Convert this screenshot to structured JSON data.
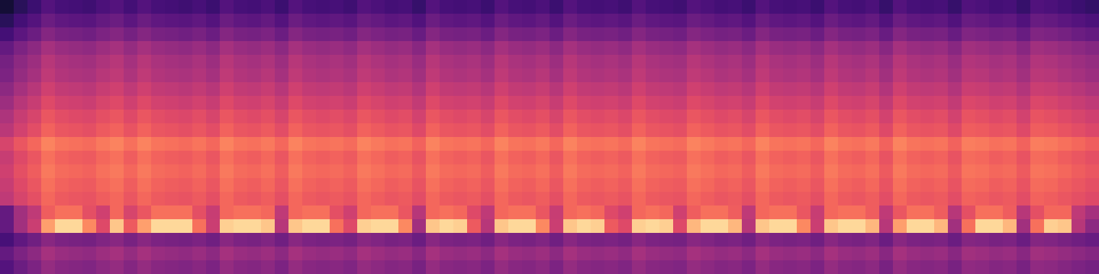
{
  "chart_data": {
    "type": "heatmap",
    "color": "magma",
    "tick_labels": false,
    "zlim": [
      0,
      100
    ],
    "cells": [
      [
        10,
        16,
        20,
        26,
        23,
        22,
        21,
        24,
        26,
        22,
        26,
        23,
        22,
        21,
        23,
        20,
        26,
        23,
        22,
        24,
        20,
        26,
        23,
        22,
        23,
        21,
        26,
        24,
        22,
        23,
        19,
        26,
        23,
        22,
        23,
        20,
        26,
        23,
        22,
        24,
        20,
        26,
        23,
        22,
        23,
        21,
        26,
        23,
        22,
        21,
        26,
        24,
        22,
        23,
        20,
        26,
        23,
        22,
        23,
        20,
        26,
        23,
        22,
        24,
        19,
        26,
        23,
        22,
        23,
        19,
        25,
        24,
        22,
        23,
        19,
        25,
        24,
        22,
        20,
        18
      ],
      [
        16,
        22,
        26,
        32,
        29,
        28,
        27,
        30,
        32,
        28,
        32,
        29,
        28,
        27,
        29,
        26,
        32,
        29,
        28,
        30,
        26,
        32,
        29,
        28,
        29,
        27,
        32,
        30,
        28,
        29,
        25,
        32,
        29,
        28,
        29,
        26,
        32,
        29,
        28,
        30,
        26,
        32,
        29,
        28,
        29,
        27,
        32,
        29,
        28,
        27,
        32,
        30,
        28,
        29,
        26,
        32,
        29,
        28,
        29,
        26,
        32,
        29,
        28,
        30,
        25,
        32,
        29,
        28,
        29,
        25,
        31,
        30,
        28,
        29,
        25,
        31,
        30,
        28,
        26,
        24
      ],
      [
        22,
        28,
        32,
        38,
        35,
        34,
        33,
        36,
        38,
        34,
        38,
        35,
        34,
        33,
        35,
        32,
        38,
        35,
        34,
        36,
        32,
        38,
        35,
        34,
        35,
        33,
        38,
        36,
        34,
        35,
        31,
        38,
        35,
        34,
        35,
        32,
        38,
        35,
        34,
        36,
        32,
        38,
        35,
        34,
        35,
        33,
        38,
        35,
        34,
        33,
        38,
        36,
        34,
        35,
        32,
        38,
        35,
        34,
        35,
        32,
        38,
        35,
        34,
        36,
        31,
        38,
        35,
        34,
        35,
        31,
        37,
        36,
        34,
        35,
        31,
        37,
        36,
        34,
        32,
        30
      ],
      [
        30,
        36,
        40,
        46,
        43,
        42,
        41,
        44,
        46,
        42,
        46,
        43,
        42,
        41,
        43,
        40,
        46,
        43,
        42,
        44,
        40,
        46,
        43,
        42,
        43,
        41,
        46,
        44,
        42,
        43,
        39,
        46,
        43,
        42,
        43,
        40,
        46,
        43,
        42,
        44,
        40,
        46,
        43,
        42,
        43,
        41,
        46,
        43,
        42,
        41,
        46,
        44,
        42,
        43,
        40,
        46,
        43,
        42,
        43,
        40,
        46,
        43,
        42,
        44,
        39,
        46,
        43,
        42,
        43,
        39,
        45,
        44,
        42,
        43,
        39,
        45,
        44,
        42,
        40,
        38
      ],
      [
        34,
        40,
        44,
        50,
        47,
        46,
        45,
        48,
        50,
        46,
        50,
        47,
        46,
        45,
        47,
        44,
        50,
        47,
        46,
        48,
        44,
        50,
        47,
        46,
        47,
        45,
        50,
        48,
        46,
        47,
        43,
        50,
        47,
        46,
        47,
        44,
        50,
        47,
        46,
        48,
        44,
        50,
        47,
        46,
        47,
        45,
        50,
        47,
        46,
        45,
        50,
        48,
        46,
        47,
        44,
        50,
        47,
        46,
        47,
        44,
        50,
        47,
        46,
        48,
        43,
        50,
        47,
        46,
        47,
        43,
        49,
        48,
        46,
        47,
        43,
        49,
        48,
        46,
        44,
        42
      ],
      [
        36,
        42,
        46,
        52,
        49,
        48,
        47,
        50,
        52,
        48,
        52,
        49,
        48,
        47,
        49,
        46,
        52,
        49,
        48,
        50,
        46,
        52,
        49,
        48,
        49,
        47,
        52,
        50,
        48,
        49,
        45,
        52,
        49,
        48,
        49,
        46,
        52,
        49,
        48,
        50,
        46,
        52,
        49,
        48,
        49,
        47,
        52,
        49,
        48,
        47,
        52,
        50,
        48,
        49,
        46,
        52,
        49,
        48,
        49,
        46,
        52,
        49,
        48,
        50,
        45,
        52,
        49,
        48,
        49,
        45,
        51,
        50,
        48,
        49,
        45,
        51,
        50,
        48,
        46,
        44
      ],
      [
        40,
        46,
        50,
        56,
        53,
        52,
        51,
        54,
        56,
        52,
        56,
        53,
        52,
        51,
        53,
        50,
        56,
        53,
        52,
        54,
        50,
        56,
        53,
        52,
        53,
        51,
        56,
        54,
        52,
        53,
        49,
        56,
        53,
        52,
        53,
        50,
        56,
        53,
        52,
        54,
        50,
        56,
        53,
        52,
        53,
        51,
        56,
        53,
        52,
        51,
        56,
        54,
        52,
        53,
        50,
        56,
        53,
        52,
        53,
        50,
        56,
        53,
        52,
        54,
        49,
        56,
        53,
        52,
        53,
        49,
        55,
        54,
        52,
        53,
        49,
        55,
        54,
        52,
        50,
        48
      ],
      [
        44,
        50,
        54,
        60,
        57,
        56,
        55,
        58,
        60,
        56,
        60,
        57,
        56,
        55,
        57,
        54,
        60,
        57,
        56,
        58,
        54,
        60,
        57,
        56,
        57,
        55,
        60,
        58,
        56,
        57,
        53,
        60,
        57,
        56,
        57,
        54,
        60,
        57,
        56,
        58,
        54,
        60,
        57,
        56,
        57,
        55,
        60,
        57,
        56,
        55,
        60,
        58,
        56,
        57,
        54,
        60,
        57,
        56,
        57,
        54,
        60,
        57,
        56,
        58,
        53,
        60,
        57,
        56,
        57,
        53,
        59,
        58,
        56,
        57,
        53,
        59,
        58,
        56,
        54,
        52
      ],
      [
        48,
        54,
        58,
        64,
        61,
        60,
        59,
        62,
        64,
        60,
        64,
        61,
        60,
        59,
        61,
        58,
        64,
        61,
        60,
        62,
        58,
        64,
        61,
        60,
        61,
        59,
        64,
        62,
        60,
        61,
        57,
        64,
        61,
        60,
        61,
        58,
        64,
        61,
        60,
        62,
        58,
        64,
        61,
        60,
        61,
        59,
        64,
        61,
        60,
        59,
        64,
        62,
        60,
        61,
        58,
        64,
        61,
        60,
        61,
        58,
        64,
        61,
        60,
        62,
        57,
        64,
        61,
        60,
        61,
        57,
        63,
        62,
        60,
        61,
        57,
        63,
        62,
        60,
        58,
        56
      ],
      [
        51,
        57,
        61,
        67,
        64,
        63,
        62,
        65,
        67,
        63,
        67,
        64,
        63,
        62,
        64,
        61,
        67,
        64,
        63,
        65,
        61,
        67,
        64,
        63,
        64,
        62,
        67,
        65,
        63,
        64,
        60,
        67,
        64,
        63,
        64,
        61,
        67,
        64,
        63,
        65,
        61,
        67,
        64,
        63,
        64,
        62,
        67,
        64,
        63,
        62,
        67,
        65,
        63,
        64,
        61,
        67,
        64,
        63,
        64,
        61,
        67,
        64,
        63,
        65,
        60,
        67,
        64,
        63,
        64,
        60,
        66,
        65,
        63,
        64,
        60,
        66,
        65,
        63,
        61,
        59
      ],
      [
        58,
        64,
        68,
        74,
        71,
        70,
        69,
        72,
        74,
        70,
        74,
        71,
        70,
        69,
        71,
        68,
        74,
        71,
        70,
        72,
        68,
        74,
        71,
        70,
        71,
        69,
        74,
        72,
        70,
        71,
        67,
        74,
        71,
        70,
        71,
        68,
        74,
        71,
        70,
        72,
        68,
        74,
        71,
        70,
        71,
        69,
        74,
        71,
        70,
        69,
        74,
        72,
        70,
        71,
        68,
        74,
        71,
        70,
        71,
        68,
        74,
        71,
        70,
        72,
        67,
        74,
        71,
        70,
        71,
        67,
        73,
        72,
        70,
        71,
        67,
        73,
        72,
        70,
        68,
        66
      ],
      [
        54,
        60,
        64,
        70,
        67,
        66,
        65,
        68,
        70,
        66,
        70,
        67,
        66,
        65,
        67,
        64,
        70,
        67,
        66,
        68,
        64,
        70,
        67,
        66,
        67,
        65,
        70,
        68,
        66,
        67,
        63,
        70,
        67,
        66,
        67,
        64,
        70,
        67,
        66,
        68,
        64,
        70,
        67,
        66,
        67,
        65,
        70,
        67,
        66,
        65,
        70,
        68,
        66,
        67,
        64,
        70,
        67,
        66,
        67,
        64,
        70,
        67,
        66,
        68,
        63,
        70,
        67,
        66,
        67,
        63,
        69,
        68,
        66,
        67,
        63,
        69,
        68,
        66,
        64,
        62
      ],
      [
        56,
        62,
        66,
        72,
        69,
        68,
        67,
        70,
        72,
        68,
        72,
        69,
        68,
        67,
        69,
        66,
        72,
        69,
        68,
        70,
        66,
        72,
        69,
        68,
        69,
        67,
        72,
        70,
        68,
        69,
        65,
        72,
        69,
        68,
        69,
        66,
        72,
        69,
        68,
        70,
        66,
        72,
        69,
        68,
        69,
        67,
        72,
        69,
        68,
        67,
        72,
        70,
        68,
        69,
        66,
        72,
        69,
        68,
        69,
        66,
        72,
        69,
        68,
        70,
        65,
        72,
        69,
        68,
        69,
        65,
        71,
        70,
        68,
        69,
        65,
        71,
        70,
        68,
        66,
        64
      ],
      [
        54,
        60,
        64,
        70,
        67,
        66,
        65,
        68,
        70,
        66,
        70,
        67,
        66,
        65,
        67,
        64,
        70,
        67,
        66,
        68,
        64,
        70,
        67,
        66,
        67,
        65,
        70,
        68,
        66,
        67,
        63,
        70,
        67,
        66,
        67,
        64,
        70,
        67,
        66,
        68,
        64,
        70,
        67,
        66,
        67,
        65,
        70,
        67,
        66,
        65,
        70,
        68,
        66,
        67,
        64,
        70,
        67,
        66,
        67,
        64,
        70,
        67,
        66,
        68,
        63,
        70,
        67,
        66,
        67,
        63,
        69,
        68,
        66,
        67,
        63,
        69,
        68,
        66,
        64,
        62
      ],
      [
        52,
        58,
        62,
        68,
        65,
        64,
        63,
        66,
        68,
        64,
        68,
        65,
        64,
        63,
        65,
        62,
        68,
        65,
        64,
        66,
        62,
        68,
        65,
        64,
        65,
        63,
        68,
        66,
        64,
        65,
        61,
        68,
        65,
        64,
        65,
        62,
        68,
        65,
        64,
        66,
        62,
        68,
        65,
        64,
        65,
        63,
        68,
        65,
        64,
        63,
        68,
        66,
        64,
        65,
        62,
        68,
        65,
        64,
        65,
        62,
        68,
        65,
        64,
        66,
        61,
        68,
        65,
        64,
        65,
        61,
        67,
        66,
        64,
        65,
        61,
        67,
        66,
        64,
        62,
        60
      ],
      [
        30,
        45,
        52,
        66,
        70,
        70,
        62,
        56,
        68,
        58,
        64,
        70,
        70,
        70,
        62,
        54,
        68,
        70,
        70,
        68,
        52,
        68,
        70,
        70,
        62,
        56,
        68,
        70,
        70,
        64,
        50,
        68,
        70,
        68,
        60,
        52,
        68,
        70,
        70,
        64,
        54,
        68,
        70,
        68,
        60,
        56,
        68,
        70,
        68,
        56,
        66,
        70,
        70,
        66,
        52,
        68,
        70,
        70,
        64,
        54,
        68,
        70,
        70,
        66,
        52,
        64,
        70,
        70,
        66,
        50,
        62,
        70,
        70,
        66,
        50,
        62,
        68,
        68,
        52,
        46
      ],
      [
        30,
        45,
        55,
        80,
        92,
        92,
        75,
        60,
        88,
        65,
        80,
        92,
        92,
        92,
        70,
        55,
        90,
        92,
        92,
        88,
        50,
        88,
        92,
        92,
        70,
        60,
        90,
        92,
        92,
        75,
        45,
        88,
        92,
        90,
        65,
        50,
        88,
        92,
        92,
        75,
        55,
        88,
        92,
        90,
        65,
        60,
        90,
        92,
        90,
        60,
        85,
        92,
        92,
        85,
        50,
        88,
        92,
        92,
        75,
        55,
        88,
        92,
        92,
        85,
        50,
        80,
        92,
        92,
        85,
        45,
        70,
        92,
        92,
        85,
        45,
        70,
        90,
        88,
        50,
        40
      ],
      [
        23,
        29,
        33,
        39,
        36,
        35,
        34,
        37,
        39,
        35,
        39,
        36,
        35,
        34,
        36,
        33,
        39,
        36,
        35,
        37,
        33,
        39,
        36,
        35,
        36,
        34,
        39,
        37,
        35,
        36,
        32,
        39,
        36,
        35,
        36,
        33,
        39,
        36,
        35,
        37,
        33,
        39,
        36,
        35,
        36,
        34,
        39,
        36,
        35,
        34,
        39,
        37,
        35,
        36,
        33,
        39,
        36,
        35,
        36,
        33,
        39,
        36,
        35,
        37,
        32,
        39,
        36,
        35,
        36,
        32,
        38,
        37,
        35,
        36,
        32,
        38,
        37,
        35,
        33,
        31
      ],
      [
        30,
        36,
        40,
        46,
        43,
        42,
        41,
        44,
        46,
        42,
        46,
        43,
        42,
        41,
        43,
        40,
        46,
        43,
        42,
        44,
        40,
        46,
        43,
        42,
        43,
        41,
        46,
        44,
        42,
        43,
        39,
        46,
        43,
        42,
        43,
        40,
        46,
        43,
        42,
        44,
        40,
        46,
        43,
        42,
        43,
        41,
        46,
        43,
        42,
        41,
        46,
        44,
        42,
        43,
        40,
        46,
        43,
        42,
        43,
        40,
        46,
        43,
        42,
        44,
        39,
        46,
        43,
        42,
        43,
        39,
        45,
        44,
        42,
        43,
        39,
        45,
        44,
        42,
        40,
        38
      ],
      [
        26,
        32,
        36,
        42,
        39,
        38,
        37,
        40,
        42,
        38,
        42,
        39,
        38,
        37,
        39,
        36,
        42,
        39,
        38,
        40,
        36,
        42,
        39,
        38,
        39,
        37,
        42,
        40,
        38,
        39,
        35,
        42,
        39,
        38,
        39,
        36,
        42,
        39,
        38,
        40,
        36,
        42,
        39,
        38,
        39,
        37,
        42,
        39,
        38,
        37,
        42,
        40,
        38,
        39,
        36,
        42,
        39,
        38,
        39,
        36,
        42,
        39,
        38,
        40,
        35,
        42,
        39,
        38,
        39,
        35,
        41,
        40,
        38,
        39,
        35,
        41,
        40,
        38,
        36,
        34
      ]
    ]
  }
}
